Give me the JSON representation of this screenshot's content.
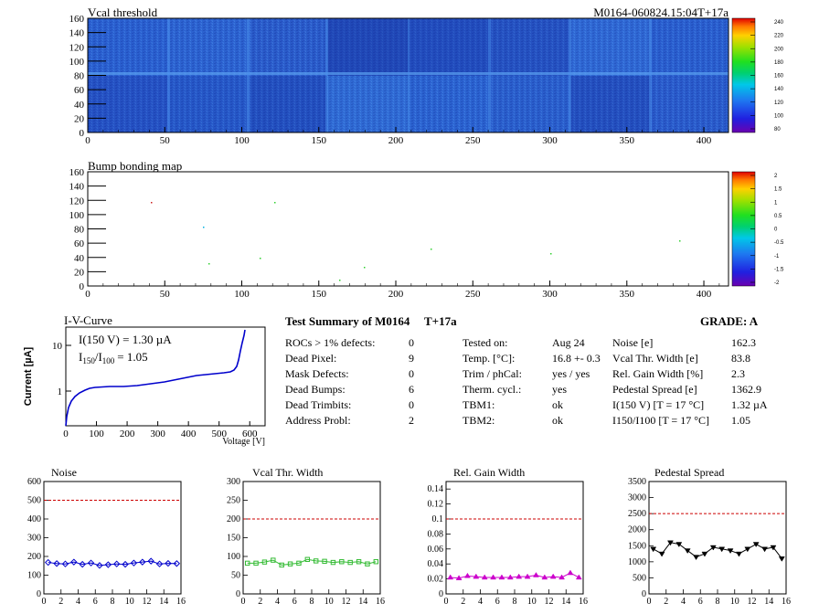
{
  "vcal_map": {
    "title": "Vcal threshold",
    "module_label": "M0164-060824.15:04T+17a",
    "x_ticks": [
      "0",
      "50",
      "100",
      "150",
      "200",
      "250",
      "300",
      "350",
      "400"
    ],
    "y_ticks": [
      "0",
      "20",
      "40",
      "60",
      "80",
      "100",
      "120",
      "140",
      "160"
    ],
    "colorbar_ticks": [
      "80",
      "100",
      "120",
      "140",
      "160",
      "180",
      "200",
      "220",
      "240"
    ]
  },
  "bump_map": {
    "title": "Bump bonding map",
    "x_ticks": [
      "0",
      "50",
      "100",
      "150",
      "200",
      "250",
      "300",
      "350",
      "400"
    ],
    "y_ticks": [
      "0",
      "20",
      "40",
      "60",
      "80",
      "100",
      "120",
      "140",
      "160"
    ],
    "colorbar_ticks": [
      "-2",
      "-1.5",
      "-1",
      "-0.5",
      "0",
      "0.5",
      "1",
      "1.5",
      "2"
    ]
  },
  "iv": {
    "title": "I-V-Curve",
    "ylabel": "Current [µA]",
    "xlabel": "Voltage [V]",
    "annot1": "I(150 V) = 1.30 µA",
    "annot2_main": "I",
    "annot2_sub1": "150",
    "annot2_mid": "/I",
    "annot2_sub2": "100",
    "annot2_val": "=  1.05",
    "x_ticks": [
      "0",
      "100",
      "200",
      "300",
      "400",
      "500",
      "600"
    ],
    "y_ticks": [
      "1",
      "10"
    ]
  },
  "summary": {
    "title": "Test Summary of M0164",
    "tag": "T+17a",
    "grade": "GRADE:  A",
    "col1": [
      {
        "label": "ROCs > 1% defects:",
        "value": "0"
      },
      {
        "label": "Dead Pixel:",
        "value": "9"
      },
      {
        "label": "Mask Defects:",
        "value": "0"
      },
      {
        "label": "Dead Bumps:",
        "value": "6"
      },
      {
        "label": "Dead Trimbits:",
        "value": "0"
      },
      {
        "label": "Address Probl:",
        "value": "2"
      }
    ],
    "col2": [
      {
        "label": "Tested on:",
        "value": "Aug 24"
      },
      {
        "label": "Temp. [°C]:",
        "value": "16.8 +- 0.3"
      },
      {
        "label": "Trim / phCal:",
        "value": "yes / yes"
      },
      {
        "label": "Therm. cycl.:",
        "value": "yes"
      },
      {
        "label": "TBM1:",
        "value": "ok"
      },
      {
        "label": "TBM2:",
        "value": "ok"
      }
    ],
    "col3": [
      {
        "label": "Noise [e]",
        "value": "162.3"
      },
      {
        "label": "Vcal Thr. Width [e]",
        "value": "83.8"
      },
      {
        "label": "Rel. Gain Width [%]",
        "value": "2.3"
      },
      {
        "label": "Pedestal Spread [e]",
        "value": "1362.9"
      },
      {
        "label": "I(150 V) [T = 17 °C]",
        "value": "1.32 µA"
      },
      {
        "label": "I150/I100  [T = 17 °C]",
        "value": "1.05"
      }
    ]
  },
  "colors": {
    "noise": "#0000cc",
    "vcal_width": "#33bb33",
    "gain": "#cc00cc",
    "pedestal": "#000000",
    "limit": "#cc0000"
  },
  "chart_data": [
    {
      "type": "line",
      "title": "Noise",
      "x": [
        0,
        1,
        2,
        3,
        4,
        5,
        6,
        7,
        8,
        9,
        10,
        11,
        12,
        13,
        14,
        15
      ],
      "values": [
        168,
        162,
        160,
        170,
        158,
        165,
        152,
        156,
        160,
        158,
        165,
        170,
        175,
        160,
        163,
        162
      ],
      "limit": 500,
      "ylim": [
        0,
        600
      ],
      "x_ticks": [
        "0",
        "2",
        "4",
        "6",
        "8",
        "10",
        "12",
        "14",
        "16"
      ],
      "y_ticks": [
        "0",
        "100",
        "200",
        "300",
        "400",
        "500",
        "600"
      ]
    },
    {
      "type": "line",
      "title": "Vcal Thr. Width",
      "x": [
        0,
        1,
        2,
        3,
        4,
        5,
        6,
        7,
        8,
        9,
        10,
        11,
        12,
        13,
        14,
        15
      ],
      "values": [
        82,
        82,
        85,
        90,
        77,
        80,
        82,
        92,
        88,
        87,
        84,
        86,
        84,
        86,
        80,
        86
      ],
      "limit": 200,
      "ylim": [
        0,
        300
      ],
      "x_ticks": [
        "0",
        "2",
        "4",
        "6",
        "8",
        "10",
        "12",
        "14",
        "16"
      ],
      "y_ticks": [
        "0",
        "50",
        "100",
        "150",
        "200",
        "250",
        "300"
      ]
    },
    {
      "type": "line",
      "title": "Rel. Gain Width",
      "x": [
        0,
        1,
        2,
        3,
        4,
        5,
        6,
        7,
        8,
        9,
        10,
        11,
        12,
        13,
        14,
        15
      ],
      "values": [
        0.022,
        0.021,
        0.024,
        0.023,
        0.022,
        0.022,
        0.022,
        0.022,
        0.023,
        0.023,
        0.025,
        0.022,
        0.023,
        0.022,
        0.028,
        0.022
      ],
      "limit": 0.1,
      "ylim": [
        0,
        0.15
      ],
      "x_ticks": [
        "0",
        "2",
        "4",
        "6",
        "8",
        "10",
        "12",
        "14",
        "16"
      ],
      "y_ticks": [
        "0",
        "0.02",
        "0.04",
        "0.06",
        "0.08",
        "0.1",
        "0.12",
        "0.14"
      ]
    },
    {
      "type": "line",
      "title": "Pedestal Spread",
      "x": [
        0,
        1,
        2,
        3,
        4,
        5,
        6,
        7,
        8,
        9,
        10,
        11,
        12,
        13,
        14,
        15
      ],
      "values": [
        1400,
        1250,
        1600,
        1550,
        1350,
        1150,
        1250,
        1450,
        1400,
        1350,
        1250,
        1400,
        1550,
        1400,
        1450,
        1100
      ],
      "limit": 2500,
      "ylim": [
        0,
        3500
      ],
      "x_ticks": [
        "0",
        "2",
        "4",
        "6",
        "8",
        "10",
        "12",
        "14",
        "16"
      ],
      "y_ticks": [
        "0",
        "500",
        "1000",
        "1500",
        "2000",
        "2500",
        "3000",
        "3500"
      ]
    }
  ]
}
